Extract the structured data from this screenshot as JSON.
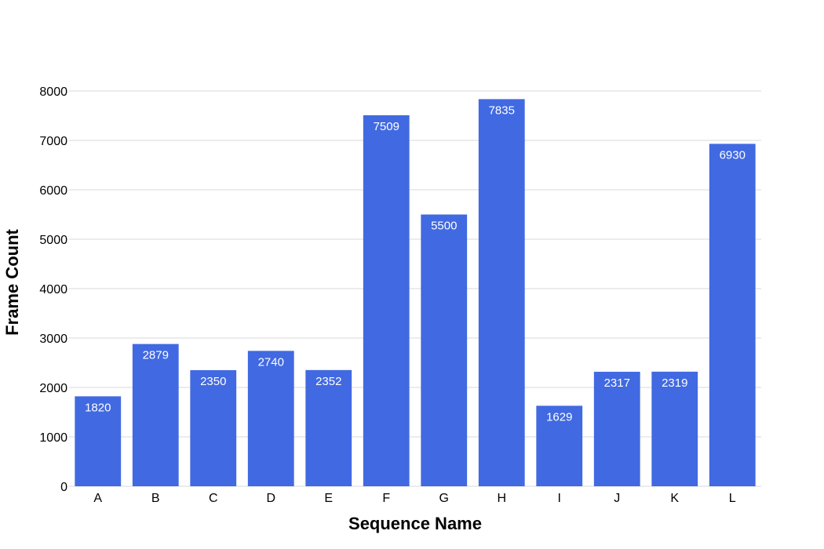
{
  "chart_data": {
    "type": "bar",
    "title": "",
    "xlabel": "Sequence Name",
    "ylabel": "Frame Count",
    "categories": [
      "A",
      "B",
      "C",
      "D",
      "E",
      "F",
      "G",
      "H",
      "I",
      "J",
      "K",
      "L"
    ],
    "values": [
      1820,
      2879,
      2350,
      2740,
      2352,
      7509,
      5500,
      7835,
      1629,
      2317,
      2319,
      6930
    ],
    "ylim": [
      0,
      8000
    ],
    "yticks": [
      0,
      1000,
      2000,
      3000,
      4000,
      5000,
      6000,
      7000,
      8000
    ],
    "grid": true,
    "legend": "none",
    "bar_color": "#4169e1",
    "data_labels": true
  }
}
